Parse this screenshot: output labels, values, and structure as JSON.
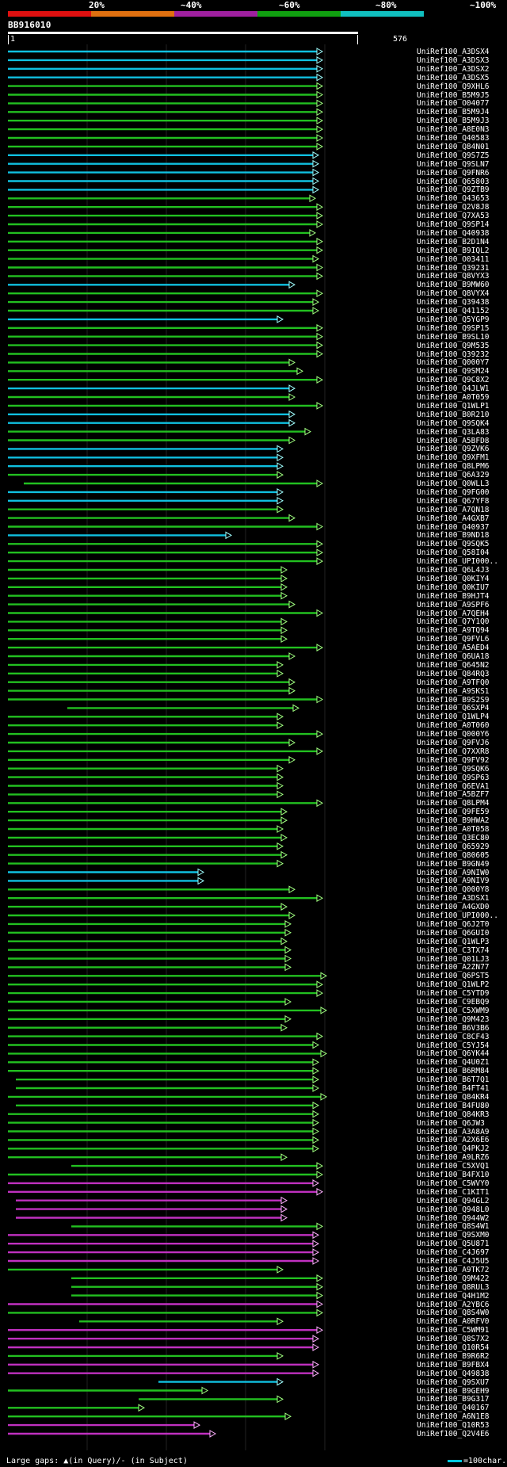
{
  "query": {
    "title": "BB916010",
    "start": "1",
    "end": "576"
  },
  "identity_scale": {
    "labels": [
      "20%",
      "~40%",
      "~60%",
      "~80%",
      "~100%"
    ],
    "colors": [
      "#e01010",
      "#e07010",
      "#a020a0",
      "#10a010",
      "#10c0c0"
    ]
  },
  "footer": {
    "large_gaps": "Large gaps:",
    "in_query": "(in Query)/",
    "in_subject": "(in Subject)",
    "legend_text": "=100char."
  },
  "color_key": {
    "green": "#22c020",
    "cyan": "#10c0e0",
    "magenta": "#c030c0",
    "head_green": "#a0ff80",
    "head_cyan": "#a0ffff",
    "head_magenta": "#ffb0ff"
  },
  "hits": [
    {
      "id": "UniRef100_A3DSX4",
      "start": 0,
      "end": 395,
      "color": "cyan"
    },
    {
      "id": "UniRef100_A3DSX3",
      "start": 0,
      "end": 395,
      "color": "cyan"
    },
    {
      "id": "UniRef100_A3DSX2",
      "start": 0,
      "end": 395,
      "color": "cyan"
    },
    {
      "id": "UniRef100_A3DSX5",
      "start": 0,
      "end": 395,
      "color": "cyan"
    },
    {
      "id": "UniRef100_Q9XHL6",
      "start": 0,
      "end": 395,
      "color": "green"
    },
    {
      "id": "UniRef100_B5M9J5",
      "start": 0,
      "end": 395,
      "color": "green"
    },
    {
      "id": "UniRef100_O04077",
      "start": 0,
      "end": 395,
      "color": "green"
    },
    {
      "id": "UniRef100_B5M9J4",
      "start": 0,
      "end": 395,
      "color": "green"
    },
    {
      "id": "UniRef100_B5M9J3",
      "start": 0,
      "end": 395,
      "color": "green"
    },
    {
      "id": "UniRef100_A8E0N3",
      "start": 0,
      "end": 395,
      "color": "green"
    },
    {
      "id": "UniRef100_Q40583",
      "start": 0,
      "end": 395,
      "color": "green"
    },
    {
      "id": "UniRef100_Q84N01",
      "start": 0,
      "end": 395,
      "color": "green"
    },
    {
      "id": "UniRef100_Q9S7Z5",
      "start": 0,
      "end": 390,
      "color": "cyan"
    },
    {
      "id": "UniRef100_Q9SLN7",
      "start": 0,
      "end": 390,
      "color": "cyan"
    },
    {
      "id": "UniRef100_Q9FNR6",
      "start": 0,
      "end": 390,
      "color": "cyan"
    },
    {
      "id": "UniRef100_Q65803",
      "start": 0,
      "end": 390,
      "color": "cyan"
    },
    {
      "id": "UniRef100_Q9ZTB9",
      "start": 0,
      "end": 390,
      "color": "cyan"
    },
    {
      "id": "UniRef100_Q43653",
      "start": 0,
      "end": 386,
      "color": "green"
    },
    {
      "id": "UniRef100_Q2V8J8",
      "start": 0,
      "end": 395,
      "color": "green"
    },
    {
      "id": "UniRef100_Q7XA53",
      "start": 0,
      "end": 395,
      "color": "green"
    },
    {
      "id": "UniRef100_Q9SP14",
      "start": 0,
      "end": 395,
      "color": "green"
    },
    {
      "id": "UniRef100_Q40938",
      "start": 0,
      "end": 386,
      "color": "green"
    },
    {
      "id": "UniRef100_B2D1N4",
      "start": 0,
      "end": 395,
      "color": "green"
    },
    {
      "id": "UniRef100_B9IQL2",
      "start": 0,
      "end": 395,
      "color": "green"
    },
    {
      "id": "UniRef100_O03411",
      "start": 0,
      "end": 390,
      "color": "green"
    },
    {
      "id": "UniRef100_Q39231",
      "start": 0,
      "end": 395,
      "color": "green"
    },
    {
      "id": "UniRef100_Q8VYX3",
      "start": 0,
      "end": 395,
      "color": "green"
    },
    {
      "id": "UniRef100_B9MW60",
      "start": 0,
      "end": 360,
      "color": "cyan"
    },
    {
      "id": "UniRef100_Q8VYX4",
      "start": 0,
      "end": 395,
      "color": "green"
    },
    {
      "id": "UniRef100_Q39438",
      "start": 0,
      "end": 390,
      "color": "green"
    },
    {
      "id": "UniRef100_Q41152",
      "start": 0,
      "end": 390,
      "color": "green"
    },
    {
      "id": "UniRef100_Q5YGP9",
      "start": 0,
      "end": 345,
      "color": "cyan"
    },
    {
      "id": "UniRef100_Q9SP15",
      "start": 0,
      "end": 395,
      "color": "green"
    },
    {
      "id": "UniRef100_B9SL10",
      "start": 0,
      "end": 395,
      "color": "green"
    },
    {
      "id": "UniRef100_Q9M535",
      "start": 0,
      "end": 395,
      "color": "green"
    },
    {
      "id": "UniRef100_Q39232",
      "start": 0,
      "end": 395,
      "color": "green"
    },
    {
      "id": "UniRef100_Q000Y7",
      "start": 0,
      "end": 360,
      "color": "green"
    },
    {
      "id": "UniRef100_Q9SM24",
      "start": 0,
      "end": 370,
      "color": "green"
    },
    {
      "id": "UniRef100_Q9C8X2",
      "start": 0,
      "end": 395,
      "color": "green"
    },
    {
      "id": "UniRef100_Q4JLW1",
      "start": 0,
      "end": 360,
      "color": "cyan"
    },
    {
      "id": "UniRef100_A0T059",
      "start": 0,
      "end": 360,
      "color": "green"
    },
    {
      "id": "UniRef100_Q1WLP1",
      "start": 0,
      "end": 395,
      "color": "green"
    },
    {
      "id": "UniRef100_B0R210",
      "start": 0,
      "end": 360,
      "color": "cyan"
    },
    {
      "id": "UniRef100_Q9SQK4",
      "start": 0,
      "end": 360,
      "color": "cyan"
    },
    {
      "id": "UniRef100_Q3LA83",
      "start": 0,
      "end": 380,
      "color": "green"
    },
    {
      "id": "UniRef100_A5BFD8",
      "start": 0,
      "end": 360,
      "color": "green"
    },
    {
      "id": "UniRef100_Q9ZVK6",
      "start": 0,
      "end": 345,
      "color": "cyan"
    },
    {
      "id": "UniRef100_Q9XFM1",
      "start": 0,
      "end": 345,
      "color": "cyan"
    },
    {
      "id": "UniRef100_Q8LPM6",
      "start": 0,
      "end": 345,
      "color": "cyan"
    },
    {
      "id": "UniRef100_Q6A329",
      "start": 0,
      "end": 345,
      "color": "green"
    },
    {
      "id": "UniRef100_Q0WLL3",
      "start": 20,
      "end": 395,
      "color": "green"
    },
    {
      "id": "UniRef100_Q9FG00",
      "start": 0,
      "end": 345,
      "color": "cyan"
    },
    {
      "id": "UniRef100_Q67YF8",
      "start": 0,
      "end": 345,
      "color": "cyan"
    },
    {
      "id": "UniRef100_A7QN18",
      "start": 0,
      "end": 345,
      "color": "green"
    },
    {
      "id": "UniRef100_A4GXB7",
      "start": 0,
      "end": 360,
      "color": "green"
    },
    {
      "id": "UniRef100_Q40937",
      "start": 0,
      "end": 395,
      "color": "green"
    },
    {
      "id": "UniRef100_B9ND18",
      "start": 0,
      "end": 280,
      "color": "cyan"
    },
    {
      "id": "UniRef100_Q9SQK5",
      "start": 0,
      "end": 395,
      "color": "green"
    },
    {
      "id": "UniRef100_Q58I04",
      "start": 0,
      "end": 395,
      "color": "green"
    },
    {
      "id": "UniRef100_UPI000..",
      "start": 0,
      "end": 395,
      "color": "green"
    },
    {
      "id": "UniRef100_Q6L4J3",
      "start": 0,
      "end": 350,
      "color": "green"
    },
    {
      "id": "UniRef100_Q0KIY4",
      "start": 0,
      "end": 350,
      "color": "green"
    },
    {
      "id": "UniRef100_Q0KIU7",
      "start": 0,
      "end": 350,
      "color": "green"
    },
    {
      "id": "UniRef100_B9HJT4",
      "start": 0,
      "end": 350,
      "color": "green"
    },
    {
      "id": "UniRef100_A9SPF6",
      "start": 0,
      "end": 360,
      "color": "green"
    },
    {
      "id": "UniRef100_A7QEH4",
      "start": 0,
      "end": 395,
      "color": "green"
    },
    {
      "id": "UniRef100_Q7Y1Q0",
      "start": 0,
      "end": 350,
      "color": "green"
    },
    {
      "id": "UniRef100_A9TQ94",
      "start": 0,
      "end": 350,
      "color": "green"
    },
    {
      "id": "UniRef100_Q9FVL6",
      "start": 0,
      "end": 350,
      "color": "green"
    },
    {
      "id": "UniRef100_A5AED4",
      "start": 0,
      "end": 395,
      "color": "green"
    },
    {
      "id": "UniRef100_Q6UA18",
      "start": 0,
      "end": 360,
      "color": "green"
    },
    {
      "id": "UniRef100_Q645N2",
      "start": 0,
      "end": 345,
      "color": "green"
    },
    {
      "id": "UniRef100_Q84RQ3",
      "start": 0,
      "end": 345,
      "color": "green"
    },
    {
      "id": "UniRef100_A9TFQ0",
      "start": 0,
      "end": 360,
      "color": "green"
    },
    {
      "id": "UniRef100_A9SKS1",
      "start": 0,
      "end": 360,
      "color": "green"
    },
    {
      "id": "UniRef100_B9S2S9",
      "start": 0,
      "end": 395,
      "color": "green"
    },
    {
      "id": "UniRef100_Q6SXP4",
      "start": 75,
      "end": 365,
      "color": "green"
    },
    {
      "id": "UniRef100_Q1WLP4",
      "start": 0,
      "end": 345,
      "color": "green"
    },
    {
      "id": "UniRef100_A0T060",
      "start": 0,
      "end": 345,
      "color": "green"
    },
    {
      "id": "UniRef100_Q000Y6",
      "start": 0,
      "end": 395,
      "color": "green"
    },
    {
      "id": "UniRef100_Q9FVJ6",
      "start": 0,
      "end": 360,
      "color": "green"
    },
    {
      "id": "UniRef100_Q7XXR8",
      "start": 0,
      "end": 395,
      "color": "green"
    },
    {
      "id": "UniRef100_Q9FV92",
      "start": 0,
      "end": 360,
      "color": "green"
    },
    {
      "id": "UniRef100_Q9SQK6",
      "start": 0,
      "end": 345,
      "color": "green"
    },
    {
      "id": "UniRef100_Q9SP63",
      "start": 0,
      "end": 345,
      "color": "green"
    },
    {
      "id": "UniRef100_Q6EVA1",
      "start": 0,
      "end": 345,
      "color": "green"
    },
    {
      "id": "UniRef100_A5BZF7",
      "start": 0,
      "end": 345,
      "color": "green"
    },
    {
      "id": "UniRef100_Q8LPM4",
      "start": 0,
      "end": 395,
      "color": "green"
    },
    {
      "id": "UniRef100_Q9FE59",
      "start": 0,
      "end": 350,
      "color": "green"
    },
    {
      "id": "UniRef100_B9HWA2",
      "start": 0,
      "end": 350,
      "color": "green"
    },
    {
      "id": "UniRef100_A0T058",
      "start": 0,
      "end": 345,
      "color": "green"
    },
    {
      "id": "UniRef100_Q3EC80",
      "start": 0,
      "end": 350,
      "color": "green"
    },
    {
      "id": "UniRef100_Q65929",
      "start": 0,
      "end": 345,
      "color": "green"
    },
    {
      "id": "UniRef100_Q80605",
      "start": 0,
      "end": 350,
      "color": "green"
    },
    {
      "id": "UniRef100_B9GN49",
      "start": 0,
      "end": 345,
      "color": "green"
    },
    {
      "id": "UniRef100_A9NIW0",
      "start": 0,
      "end": 245,
      "color": "cyan"
    },
    {
      "id": "UniRef100_A9NIV9",
      "start": 0,
      "end": 245,
      "color": "cyan"
    },
    {
      "id": "UniRef100_Q000Y8",
      "start": 0,
      "end": 360,
      "color": "green"
    },
    {
      "id": "UniRef100_A3DSX1",
      "start": 0,
      "end": 395,
      "color": "green"
    },
    {
      "id": "UniRef100_A4GXD0",
      "start": 0,
      "end": 350,
      "color": "green"
    },
    {
      "id": "UniRef100_UPI000..",
      "start": 0,
      "end": 360,
      "color": "green"
    },
    {
      "id": "UniRef100_Q6J2T0",
      "start": 0,
      "end": 355,
      "color": "green"
    },
    {
      "id": "UniRef100_Q6GUI0",
      "start": 0,
      "end": 355,
      "color": "green"
    },
    {
      "id": "UniRef100_Q1WLP3",
      "start": 0,
      "end": 350,
      "color": "green"
    },
    {
      "id": "UniRef100_C3TX74",
      "start": 0,
      "end": 355,
      "color": "green"
    },
    {
      "id": "UniRef100_Q01LJ3",
      "start": 0,
      "end": 355,
      "color": "green"
    },
    {
      "id": "UniRef100_A2ZN77",
      "start": 0,
      "end": 355,
      "color": "green"
    },
    {
      "id": "UniRef100_Q6PST5",
      "start": 0,
      "end": 400,
      "color": "green"
    },
    {
      "id": "UniRef100_Q1WLP2",
      "start": 0,
      "end": 395,
      "color": "green"
    },
    {
      "id": "UniRef100_C5YTD9",
      "start": 0,
      "end": 395,
      "color": "green"
    },
    {
      "id": "UniRef100_C9EBQ9",
      "start": 0,
      "end": 355,
      "color": "green"
    },
    {
      "id": "UniRef100_C5XWM9",
      "start": 0,
      "end": 400,
      "color": "green"
    },
    {
      "id": "UniRef100_Q9M423",
      "start": 0,
      "end": 355,
      "color": "green"
    },
    {
      "id": "UniRef100_B6V3B6",
      "start": 0,
      "end": 350,
      "color": "green"
    },
    {
      "id": "UniRef100_C8CF43",
      "start": 0,
      "end": 395,
      "color": "green"
    },
    {
      "id": "UniRef100_C5YJ54",
      "start": 0,
      "end": 390,
      "color": "green"
    },
    {
      "id": "UniRef100_Q6YK44",
      "start": 0,
      "end": 400,
      "color": "green"
    },
    {
      "id": "UniRef100_Q4U0Z1",
      "start": 0,
      "end": 390,
      "color": "green"
    },
    {
      "id": "UniRef100_B6RM84",
      "start": 0,
      "end": 390,
      "color": "green"
    },
    {
      "id": "UniRef100_B6T7Q1",
      "start": 10,
      "end": 390,
      "color": "green"
    },
    {
      "id": "UniRef100_B4FT41",
      "start": 10,
      "end": 390,
      "color": "green"
    },
    {
      "id": "UniRef100_Q84KR4",
      "start": 0,
      "end": 400,
      "color": "green"
    },
    {
      "id": "UniRef100_B4FU80",
      "start": 10,
      "end": 390,
      "color": "green"
    },
    {
      "id": "UniRef100_Q84KR3",
      "start": 0,
      "end": 390,
      "color": "green"
    },
    {
      "id": "UniRef100_Q6JW3",
      "start": 0,
      "end": 390,
      "color": "green"
    },
    {
      "id": "UniRef100_A3A8A9",
      "start": 0,
      "end": 390,
      "color": "green"
    },
    {
      "id": "UniRef100_A2X6E6",
      "start": 0,
      "end": 390,
      "color": "green"
    },
    {
      "id": "UniRef100_Q4PKJ2",
      "start": 0,
      "end": 390,
      "color": "green"
    },
    {
      "id": "UniRef100_A9LRZ6",
      "start": 0,
      "end": 350,
      "color": "green"
    },
    {
      "id": "UniRef100_C5XVQ1",
      "start": 80,
      "end": 395,
      "color": "green"
    },
    {
      "id": "UniRef100_B4FX10",
      "start": 0,
      "end": 395,
      "color": "green"
    },
    {
      "id": "UniRef100_C5WVY0",
      "start": 0,
      "end": 390,
      "color": "magenta"
    },
    {
      "id": "UniRef100_C1KIT1",
      "start": 0,
      "end": 395,
      "color": "magenta"
    },
    {
      "id": "UniRef100_Q94GL2",
      "start": 10,
      "end": 350,
      "color": "magenta"
    },
    {
      "id": "UniRef100_Q948L0",
      "start": 10,
      "end": 350,
      "color": "magenta"
    },
    {
      "id": "UniRef100_Q944W2",
      "start": 10,
      "end": 350,
      "color": "magenta"
    },
    {
      "id": "UniRef100_Q8S4W1",
      "start": 80,
      "end": 395,
      "color": "green"
    },
    {
      "id": "UniRef100_Q9SXM0",
      "start": 0,
      "end": 390,
      "color": "magenta"
    },
    {
      "id": "UniRef100_Q5U871",
      "start": 0,
      "end": 390,
      "color": "magenta"
    },
    {
      "id": "UniRef100_C4J697",
      "start": 0,
      "end": 390,
      "color": "magenta"
    },
    {
      "id": "UniRef100_C4J5U5",
      "start": 0,
      "end": 390,
      "color": "magenta"
    },
    {
      "id": "UniRef100_A9TK72",
      "start": 0,
      "end": 345,
      "color": "green"
    },
    {
      "id": "UniRef100_Q9M422",
      "start": 80,
      "end": 395,
      "color": "green"
    },
    {
      "id": "UniRef100_Q8RUL3",
      "start": 80,
      "end": 395,
      "color": "green"
    },
    {
      "id": "UniRef100_Q4H1M2",
      "start": 80,
      "end": 395,
      "color": "green"
    },
    {
      "id": "UniRef100_A2YBC6",
      "start": 0,
      "end": 395,
      "color": "magenta"
    },
    {
      "id": "UniRef100_Q8S4W0",
      "start": 0,
      "end": 395,
      "color": "green"
    },
    {
      "id": "UniRef100_A0RFV0",
      "start": 90,
      "end": 345,
      "color": "green"
    },
    {
      "id": "UniRef100_C5WM91",
      "start": 0,
      "end": 395,
      "color": "magenta"
    },
    {
      "id": "UniRef100_Q8S7X2",
      "start": 0,
      "end": 390,
      "color": "magenta"
    },
    {
      "id": "UniRef100_Q10R54",
      "start": 0,
      "end": 390,
      "color": "magenta"
    },
    {
      "id": "UniRef100_B9R6R2",
      "start": 0,
      "end": 345,
      "color": "green"
    },
    {
      "id": "UniRef100_B9FBX4",
      "start": 0,
      "end": 390,
      "color": "magenta"
    },
    {
      "id": "UniRef100_Q49838",
      "start": 0,
      "end": 390,
      "color": "magenta"
    },
    {
      "id": "UniRef100_Q9SXU7",
      "start": 190,
      "end": 345,
      "color": "cyan"
    },
    {
      "id": "UniRef100_B9GEH9",
      "start": 0,
      "end": 250,
      "color": "green"
    },
    {
      "id": "UniRef100_B9G317",
      "start": 165,
      "end": 345,
      "color": "green"
    },
    {
      "id": "UniRef100_Q40167",
      "start": 0,
      "end": 170,
      "color": "green"
    },
    {
      "id": "UniRef100_A6N1E8",
      "start": 0,
      "end": 355,
      "color": "green"
    },
    {
      "id": "UniRef100_Q10R53",
      "start": 0,
      "end": 240,
      "color": "magenta"
    },
    {
      "id": "UniRef100_Q2V4E6",
      "start": 0,
      "end": 260,
      "color": "magenta"
    }
  ]
}
